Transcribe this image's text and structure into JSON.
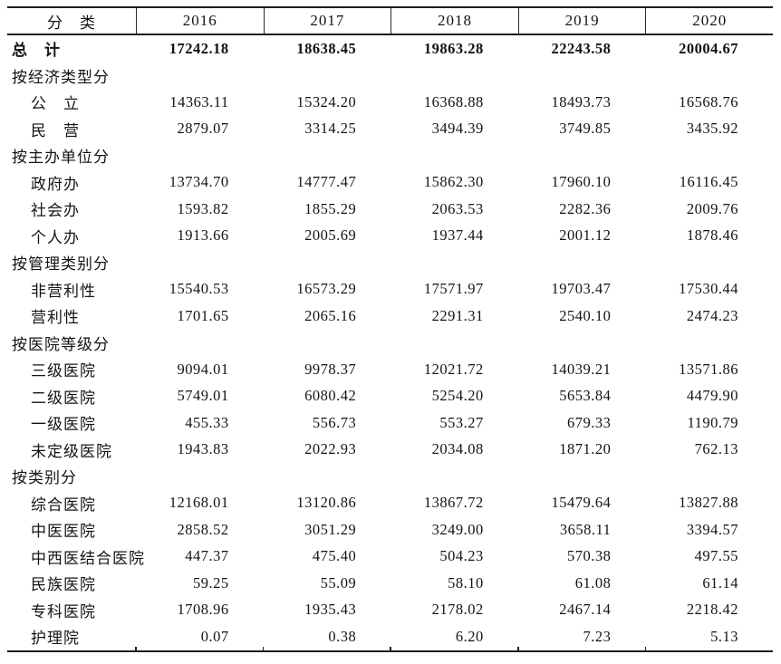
{
  "colors": {
    "background": "#ffffff",
    "text": "#141414",
    "rule": "#1c1c1c"
  },
  "table": {
    "header": {
      "label": "分　类",
      "years": [
        "2016",
        "2017",
        "2018",
        "2019",
        "2020"
      ]
    },
    "rows": [
      {
        "type": "total",
        "label": "总　计",
        "values": [
          "17242.18",
          "18638.45",
          "19863.28",
          "22243.58",
          "20004.67"
        ]
      },
      {
        "type": "section",
        "label": "按经济类型分",
        "values": [
          "",
          "",
          "",
          "",
          ""
        ]
      },
      {
        "type": "data",
        "label": "公　立",
        "values": [
          "14363.11",
          "15324.20",
          "16368.88",
          "18493.73",
          "16568.76"
        ]
      },
      {
        "type": "data",
        "label": "民　营",
        "values": [
          "2879.07",
          "3314.25",
          "3494.39",
          "3749.85",
          "3435.92"
        ]
      },
      {
        "type": "section",
        "label": "按主办单位分",
        "values": [
          "",
          "",
          "",
          "",
          ""
        ]
      },
      {
        "type": "data",
        "label": "政府办",
        "values": [
          "13734.70",
          "14777.47",
          "15862.30",
          "17960.10",
          "16116.45"
        ]
      },
      {
        "type": "data",
        "label": "社会办",
        "values": [
          "1593.82",
          "1855.29",
          "2063.53",
          "2282.36",
          "2009.76"
        ]
      },
      {
        "type": "data",
        "label": "个人办",
        "values": [
          "1913.66",
          "2005.69",
          "1937.44",
          "2001.12",
          "1878.46"
        ]
      },
      {
        "type": "section",
        "label": "按管理类别分",
        "values": [
          "",
          "",
          "",
          "",
          ""
        ]
      },
      {
        "type": "data",
        "label": "非营利性",
        "values": [
          "15540.53",
          "16573.29",
          "17571.97",
          "19703.47",
          "17530.44"
        ]
      },
      {
        "type": "data",
        "label": "营利性",
        "values": [
          "1701.65",
          "2065.16",
          "2291.31",
          "2540.10",
          "2474.23"
        ]
      },
      {
        "type": "section",
        "label": "按医院等级分",
        "values": [
          "",
          "",
          "",
          "",
          ""
        ]
      },
      {
        "type": "data",
        "label": "三级医院",
        "values": [
          "9094.01",
          "9978.37",
          "12021.72",
          "14039.21",
          "13571.86"
        ]
      },
      {
        "type": "data",
        "label": "二级医院",
        "values": [
          "5749.01",
          "6080.42",
          "5254.20",
          "5653.84",
          "4479.90"
        ]
      },
      {
        "type": "data",
        "label": "一级医院",
        "values": [
          "455.33",
          "556.73",
          "553.27",
          "679.33",
          "1190.79"
        ]
      },
      {
        "type": "data",
        "label": "未定级医院",
        "values": [
          "1943.83",
          "2022.93",
          "2034.08",
          "1871.20",
          "762.13"
        ]
      },
      {
        "type": "section",
        "label": "按类别分",
        "values": [
          "",
          "",
          "",
          "",
          ""
        ]
      },
      {
        "type": "data",
        "label": "综合医院",
        "values": [
          "12168.01",
          "13120.86",
          "13867.72",
          "15479.64",
          "13827.88"
        ]
      },
      {
        "type": "data",
        "label": "中医医院",
        "values": [
          "2858.52",
          "3051.29",
          "3249.00",
          "3658.11",
          "3394.57"
        ]
      },
      {
        "type": "data",
        "label": "中西医结合医院",
        "values": [
          "447.37",
          "475.40",
          "504.23",
          "570.38",
          "497.55"
        ]
      },
      {
        "type": "data",
        "label": "民族医院",
        "values": [
          "59.25",
          "55.09",
          "58.10",
          "61.08",
          "61.14"
        ]
      },
      {
        "type": "data",
        "label": "专科医院",
        "values": [
          "1708.96",
          "1935.43",
          "2178.02",
          "2467.14",
          "2218.42"
        ]
      },
      {
        "type": "data",
        "label": "护理院",
        "values": [
          "0.07",
          "0.38",
          "6.20",
          "7.23",
          "5.13"
        ]
      }
    ]
  }
}
